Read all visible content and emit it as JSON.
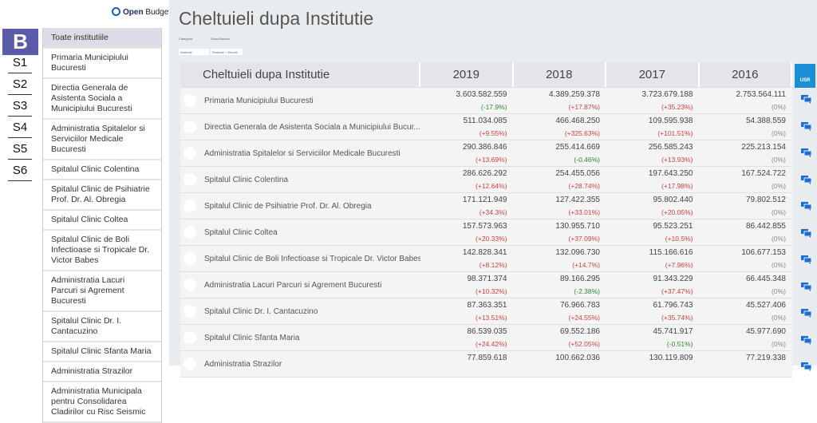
{
  "brand": {
    "logo_letter": "B",
    "open": "Open",
    "budget": "Budget"
  },
  "sectors": [
    "S1",
    "S2",
    "S3",
    "S4",
    "S5",
    "S6"
  ],
  "sidebar": [
    "Toate institutiile",
    "Primaria Municipiului Bucuresti",
    "Directia Generala de Asistenta Sociala a Municipiului Bucuresti",
    "Administratia Spitalelor si Serviciilor Medicale Bucuresti",
    "Spitalul Clinic Colentina",
    "Spitalul Clinic de Psihiatrie Prof. Dr. Al. Obregia",
    "Spitalul Clinic Coltea",
    "Spitalul Clinic de Boli Infectioase si Tropicale Dr. Victor Babes",
    "Administratia Lacuri Parcuri si Agrement Bucuresti",
    "Spitalul Clinic Dr. I. Cantacuzino",
    "Spitalul Clinic Sfanta Maria",
    "Administratia Strazilor",
    "Administratia Municipala pentru Consolidarea Cladirilor cu Risc Seismic"
  ],
  "page_title": "Cheltuieli dupa Institutie",
  "filters": [
    {
      "label": "Categorie",
      "value": "Institutie"
    },
    {
      "label": "Sursa Banilor",
      "value": "Primarie + Directii"
    }
  ],
  "table": {
    "header": "Cheltuieli dupa Institutie",
    "years": [
      "2019",
      "2018",
      "2017",
      "2016"
    ],
    "rows": [
      {
        "name": "Primaria Municipiului Bucuresti",
        "v": [
          "3.603.582.559",
          "4.389.259.378",
          "3.723.679.188",
          "2.753.564.111"
        ],
        "p": [
          "(-17.9%)",
          "(+17.87%)",
          "(+35.23%)",
          "(0%)"
        ]
      },
      {
        "name": "Directia Generala de Asistenta Sociala a Municipiului Bucur...",
        "v": [
          "511.034.085",
          "466.468.250",
          "109.595.938",
          "54.388.559"
        ],
        "p": [
          "(+9.55%)",
          "(+325.63%)",
          "(+101.51%)",
          "(0%)"
        ]
      },
      {
        "name": "Administratia Spitalelor si Serviciilor Medicale Bucuresti",
        "v": [
          "290.386.846",
          "255.414.669",
          "256.585.243",
          "225.213.154"
        ],
        "p": [
          "(+13.69%)",
          "(-0.46%)",
          "(+13.93%)",
          "(0%)"
        ]
      },
      {
        "name": "Spitalul Clinic Colentina",
        "v": [
          "286.626.292",
          "254.455.056",
          "197.643.250",
          "167.524.722"
        ],
        "p": [
          "(+12.64%)",
          "(+28.74%)",
          "(+17.98%)",
          "(0%)"
        ]
      },
      {
        "name": "Spitalul Clinic de Psihiatrie Prof. Dr. Al. Obregia",
        "v": [
          "171.121.949",
          "127.422.355",
          "95.802.440",
          "79.802.512"
        ],
        "p": [
          "(+34.3%)",
          "(+33.01%)",
          "(+20.05%)",
          "(0%)"
        ]
      },
      {
        "name": "Spitalul Clinic Coltea",
        "v": [
          "157.573.963",
          "130.955.710",
          "95.523.251",
          "86.442.855"
        ],
        "p": [
          "(+20.33%)",
          "(+37.09%)",
          "(+10.5%)",
          "(0%)"
        ]
      },
      {
        "name": "Spitalul Clinic de Boli Infectioase si Tropicale Dr. Victor Babes",
        "v": [
          "142.828.341",
          "132.096.730",
          "115.166.616",
          "106.677.153"
        ],
        "p": [
          "(+8.12%)",
          "(+14.7%)",
          "(+7.96%)",
          "(0%)"
        ]
      },
      {
        "name": "Administratia Lacuri Parcuri si Agrement Bucuresti",
        "v": [
          "98.371.374",
          "89.166.295",
          "91.343.229",
          "66.445.348"
        ],
        "p": [
          "(+10.32%)",
          "(-2.38%)",
          "(+37.47%)",
          "(0%)"
        ]
      },
      {
        "name": "Spitalul Clinic Dr. I. Cantacuzino",
        "v": [
          "87.363.351",
          "76.966.783",
          "61.796.743",
          "45.527.406"
        ],
        "p": [
          "(+13.51%)",
          "(+24.55%)",
          "(+35.74%)",
          "(0%)"
        ]
      },
      {
        "name": "Spitalul Clinic Sfanta Maria",
        "v": [
          "86.539.035",
          "69.552.186",
          "45.741.917",
          "45.977.690"
        ],
        "p": [
          "(+24.42%)",
          "(+52.05%)",
          "(-0.51%)",
          "(0%)"
        ]
      },
      {
        "name": "Administratia Strazilor",
        "v": [
          "77.859.618",
          "100.662.036",
          "130.119.809",
          "77.219.338"
        ],
        "p": [
          "",
          "",
          "",
          ""
        ]
      }
    ]
  },
  "usr_badge": "USR",
  "colors": {
    "accent": "#5b5aa8",
    "usr": "#1a8fd6",
    "up": "#d04040",
    "down": "#2e8b2e"
  }
}
